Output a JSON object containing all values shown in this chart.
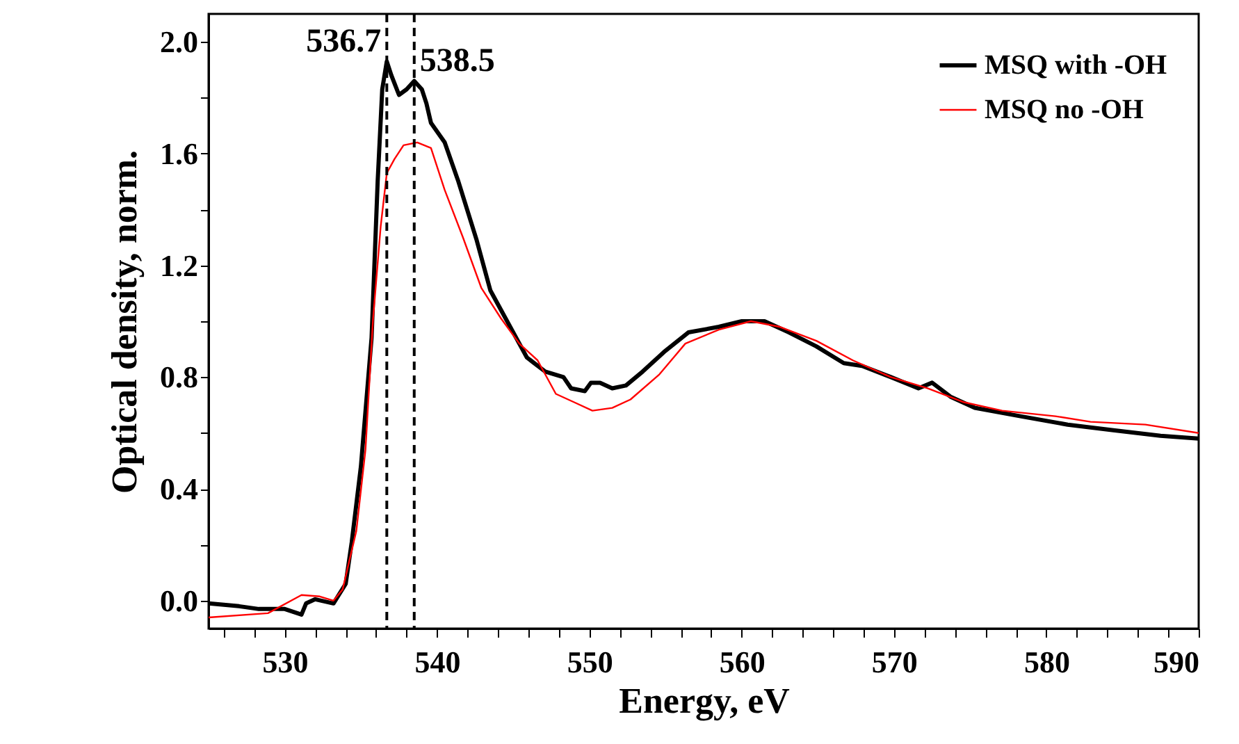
{
  "chart_data": {
    "type": "line",
    "xlabel": "Energy, eV",
    "ylabel": "Optical density, norm.",
    "xlim": [
      525,
      590
    ],
    "ylim": [
      -0.1,
      2.1
    ],
    "xticks": [
      {
        "value": 526,
        "label": null
      },
      {
        "value": 528,
        "label": null
      },
      530,
      {
        "value": 532,
        "label": null
      },
      {
        "value": 534,
        "label": null
      },
      {
        "value": 536,
        "label": null
      },
      {
        "value": 538,
        "label": null
      },
      540,
      {
        "value": 542,
        "label": null
      },
      {
        "value": 544,
        "label": null
      },
      {
        "value": 546,
        "label": null
      },
      {
        "value": 548,
        "label": null
      },
      550,
      {
        "value": 552,
        "label": null
      },
      {
        "value": 554,
        "label": null
      },
      {
        "value": 556,
        "label": null
      },
      {
        "value": 558,
        "label": null
      },
      560,
      {
        "value": 562,
        "label": null
      },
      {
        "value": 564,
        "label": null
      },
      {
        "value": 566,
        "label": null
      },
      {
        "value": 568,
        "label": null
      },
      570,
      {
        "value": 572,
        "label": null
      },
      {
        "value": 574,
        "label": null
      },
      {
        "value": 576,
        "label": null
      },
      {
        "value": 578,
        "label": null
      },
      580,
      {
        "value": 582,
        "label": null
      },
      {
        "value": 584,
        "label": null
      },
      {
        "value": 586,
        "label": null
      },
      {
        "value": 588,
        "label": null
      },
      590
    ],
    "yticks": [
      {
        "value": 0,
        "label": "0.0"
      },
      {
        "value": 0.2,
        "label": null
      },
      {
        "value": 0.4,
        "label": "0.4"
      },
      {
        "value": 0.6,
        "label": null
      },
      {
        "value": 0.8,
        "label": "0.8"
      },
      {
        "value": 1.0,
        "label": null
      },
      {
        "value": 1.2,
        "label": "1.2"
      },
      {
        "value": 1.4,
        "label": null
      },
      {
        "value": 1.6,
        "label": "1.6"
      },
      {
        "value": 1.8,
        "label": null
      },
      {
        "value": 2.0,
        "label": "2.0"
      }
    ],
    "grid": false,
    "legend": "top right",
    "line_style": "solid",
    "marker": "none",
    "series": [
      {
        "name": "MSQ with -OH",
        "color": "#000000",
        "x": [
          525,
          527,
          528.3,
          530,
          531.1,
          531.4,
          532,
          533.2,
          534,
          534.4,
          535,
          535.7,
          536.1,
          536.4,
          536.7,
          537,
          537.5,
          538,
          538.5,
          539,
          539.3,
          539.6,
          540.5,
          541.4,
          542.6,
          543.5,
          544.7,
          545.9,
          547.1,
          548.3,
          548.8,
          549.7,
          550.1,
          550.7,
          551.5,
          552.4,
          553.5,
          554.9,
          556.5,
          558.5,
          560,
          561.5,
          563.1,
          564.9,
          566.7,
          567.9,
          569.8,
          571.6,
          572.5,
          573.7,
          575.3,
          578.3,
          581.4,
          584.4,
          587.5,
          590
        ],
        "values": [
          -0.01,
          -0.02,
          -0.03,
          -0.03,
          -0.05,
          -0.01,
          0.005,
          -0.01,
          0.06,
          0.21,
          0.48,
          0.94,
          1.5,
          1.83,
          1.93,
          1.88,
          1.81,
          1.83,
          1.86,
          1.83,
          1.78,
          1.71,
          1.64,
          1.5,
          1.29,
          1.11,
          0.99,
          0.87,
          0.82,
          0.8,
          0.76,
          0.75,
          0.78,
          0.78,
          0.76,
          0.77,
          0.82,
          0.89,
          0.96,
          0.98,
          1.0,
          1.0,
          0.96,
          0.91,
          0.85,
          0.84,
          0.8,
          0.76,
          0.78,
          0.73,
          0.69,
          0.66,
          0.63,
          0.61,
          0.59,
          0.58
        ]
      },
      {
        "name": "MSQ no -OH",
        "color": "#ff0000",
        "x": [
          525,
          528.9,
          531.1,
          532.3,
          533.2,
          533.8,
          534.7,
          535.3,
          535.8,
          536.3,
          536.7,
          537.2,
          537.8,
          538.7,
          539.6,
          540.5,
          541.7,
          542.9,
          544.2,
          545.4,
          546.6,
          547.8,
          549,
          550.2,
          551.5,
          552.7,
          554.6,
          556.3,
          558.5,
          560.6,
          562.5,
          564.9,
          567.3,
          569.8,
          572.2,
          574.6,
          577.1,
          580.6,
          582.9,
          586.5,
          590
        ],
        "values": [
          -0.06,
          -0.045,
          0.02,
          0.015,
          0.0,
          0.04,
          0.25,
          0.54,
          1.01,
          1.34,
          1.53,
          1.58,
          1.63,
          1.64,
          1.62,
          1.47,
          1.3,
          1.12,
          1.01,
          0.92,
          0.86,
          0.74,
          0.71,
          0.68,
          0.69,
          0.72,
          0.81,
          0.92,
          0.97,
          1.0,
          0.98,
          0.93,
          0.86,
          0.8,
          0.76,
          0.71,
          0.68,
          0.66,
          0.64,
          0.63,
          0.6
        ]
      }
    ],
    "ref_lines": [
      {
        "axis": "x",
        "value": 536.7,
        "color": "#000000",
        "line_style": "dashed"
      },
      {
        "axis": "x",
        "value": 538.5,
        "color": "#000000",
        "line_style": "dashed"
      }
    ],
    "annotations": [
      {
        "text": "536.7",
        "x": 536.7,
        "y": 1.93
      },
      {
        "text": "538.5",
        "x": 538.5,
        "y": 1.86
      }
    ]
  }
}
